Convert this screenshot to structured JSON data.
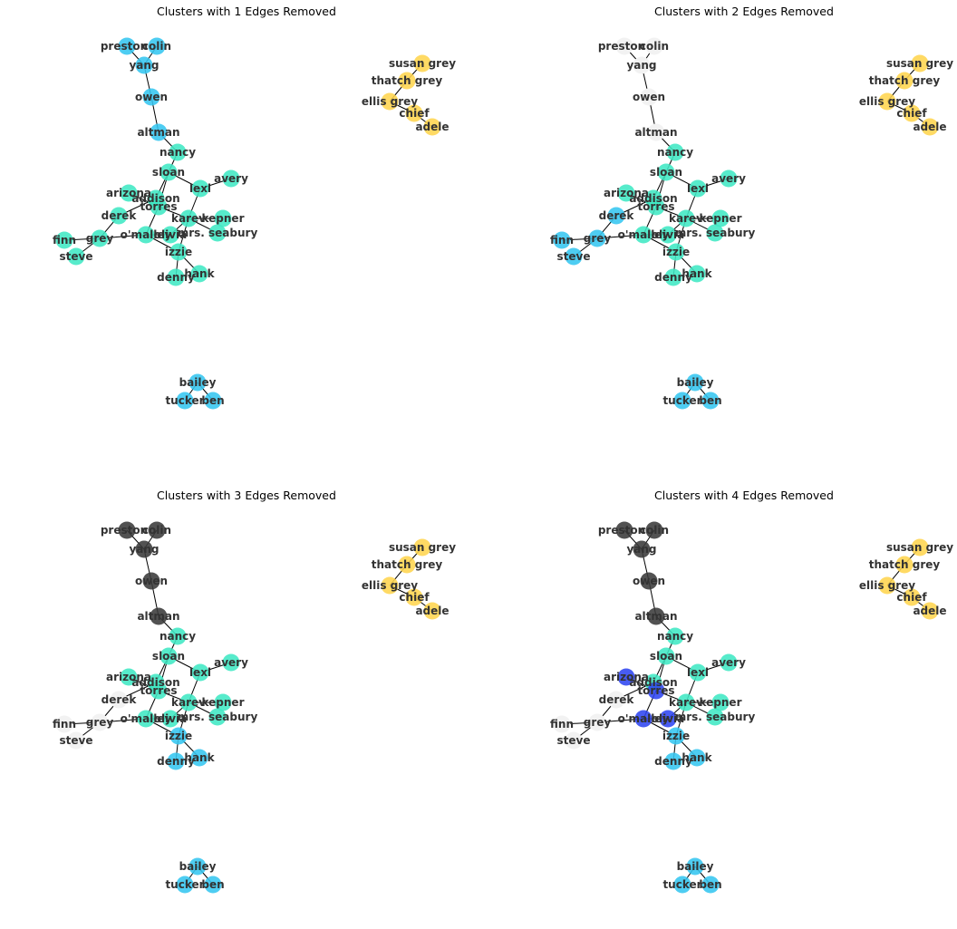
{
  "figure": {
    "panels": [
      {
        "title": "Clusters with 1 Edges Removed",
        "removed_edges": 1
      },
      {
        "title": "Clusters with 2 Edges Removed",
        "removed_edges": 2
      },
      {
        "title": "Clusters with 3 Edges Removed",
        "removed_edges": 3
      },
      {
        "title": "Clusters with 4 Edges Removed",
        "removed_edges": 4
      }
    ]
  },
  "palette": {
    "yellow": "#ffd54f",
    "teal": "#40e8c4",
    "sky": "#36c6f0",
    "gray": "#3a3a3a",
    "white": "#f2f2f2",
    "blue": "#2f45f0"
  },
  "graph": {
    "nodes": [
      "preston",
      "colin",
      "yang",
      "owen",
      "altman",
      "susan grey",
      "thatch grey",
      "ellis grey",
      "chief",
      "adele",
      "nancy",
      "sloan",
      "avery",
      "lexi",
      "arizona",
      "addison",
      "torres",
      "derek",
      "karev",
      "kepner",
      "finn",
      "grey",
      "o'malley",
      "olivia",
      "mrs. seabury",
      "steve",
      "izzie",
      "hank",
      "denny",
      "bailey",
      "tucker",
      "ben"
    ],
    "edges": [
      [
        "preston",
        "yang"
      ],
      [
        "colin",
        "yang"
      ],
      [
        "yang",
        "owen"
      ],
      [
        "owen",
        "altman"
      ],
      [
        "altman",
        "nancy"
      ],
      [
        "susan grey",
        "thatch grey"
      ],
      [
        "thatch grey",
        "ellis grey"
      ],
      [
        "ellis grey",
        "chief"
      ],
      [
        "chief",
        "adele"
      ],
      [
        "nancy",
        "sloan"
      ],
      [
        "sloan",
        "lexi"
      ],
      [
        "lexi",
        "avery"
      ],
      [
        "sloan",
        "addison"
      ],
      [
        "sloan",
        "torres"
      ],
      [
        "arizona",
        "torres"
      ],
      [
        "addison",
        "torres"
      ],
      [
        "addison",
        "derek"
      ],
      [
        "derek",
        "grey"
      ],
      [
        "lexi",
        "karev"
      ],
      [
        "torres",
        "o'malley"
      ],
      [
        "torres",
        "karev"
      ],
      [
        "karev",
        "kepner"
      ],
      [
        "karev",
        "mrs. seabury"
      ],
      [
        "karev",
        "olivia"
      ],
      [
        "karev",
        "izzie"
      ],
      [
        "o'malley",
        "olivia"
      ],
      [
        "o'malley",
        "grey"
      ],
      [
        "o'malley",
        "izzie"
      ],
      [
        "grey",
        "finn"
      ],
      [
        "grey",
        "steve"
      ],
      [
        "izzie",
        "hank"
      ],
      [
        "izzie",
        "denny"
      ],
      [
        "bailey",
        "tucker"
      ],
      [
        "bailey",
        "ben"
      ]
    ],
    "node_colors": [
      {
        "preston": "sky",
        "colin": "sky",
        "yang": "sky",
        "owen": "sky",
        "altman": "sky",
        "susan grey": "yellow",
        "thatch grey": "yellow",
        "ellis grey": "yellow",
        "chief": "yellow",
        "adele": "yellow",
        "nancy": "teal",
        "sloan": "teal",
        "avery": "teal",
        "lexi": "teal",
        "arizona": "teal",
        "addison": "teal",
        "torres": "teal",
        "derek": "teal",
        "karev": "teal",
        "kepner": "teal",
        "finn": "teal",
        "grey": "teal",
        "o'malley": "teal",
        "olivia": "teal",
        "mrs. seabury": "teal",
        "steve": "teal",
        "izzie": "teal",
        "hank": "teal",
        "denny": "teal",
        "bailey": "sky",
        "tucker": "sky",
        "ben": "sky"
      },
      {
        "preston": "white",
        "colin": "white",
        "yang": "white",
        "owen": "white",
        "altman": "white",
        "susan grey": "yellow",
        "thatch grey": "yellow",
        "ellis grey": "yellow",
        "chief": "yellow",
        "adele": "yellow",
        "nancy": "teal",
        "sloan": "teal",
        "avery": "teal",
        "lexi": "teal",
        "arizona": "teal",
        "addison": "teal",
        "torres": "teal",
        "derek": "sky",
        "karev": "teal",
        "kepner": "teal",
        "finn": "sky",
        "grey": "sky",
        "o'malley": "teal",
        "olivia": "teal",
        "mrs. seabury": "teal",
        "steve": "sky",
        "izzie": "teal",
        "hank": "teal",
        "denny": "teal",
        "bailey": "sky",
        "tucker": "sky",
        "ben": "sky"
      },
      {
        "preston": "gray",
        "colin": "gray",
        "yang": "gray",
        "owen": "gray",
        "altman": "gray",
        "susan grey": "yellow",
        "thatch grey": "yellow",
        "ellis grey": "yellow",
        "chief": "yellow",
        "adele": "yellow",
        "nancy": "teal",
        "sloan": "teal",
        "avery": "teal",
        "lexi": "teal",
        "arizona": "teal",
        "addison": "teal",
        "torres": "teal",
        "derek": "white",
        "karev": "teal",
        "kepner": "teal",
        "finn": "white",
        "grey": "white",
        "o'malley": "teal",
        "olivia": "teal",
        "mrs. seabury": "teal",
        "steve": "white",
        "izzie": "sky",
        "hank": "sky",
        "denny": "sky",
        "bailey": "sky",
        "tucker": "sky",
        "ben": "sky"
      },
      {
        "preston": "gray",
        "colin": "gray",
        "yang": "gray",
        "owen": "gray",
        "altman": "gray",
        "susan grey": "yellow",
        "thatch grey": "yellow",
        "ellis grey": "yellow",
        "chief": "yellow",
        "adele": "yellow",
        "nancy": "teal",
        "sloan": "teal",
        "avery": "teal",
        "lexi": "teal",
        "arizona": "blue",
        "addison": "teal",
        "torres": "blue",
        "derek": "white",
        "karev": "teal",
        "kepner": "teal",
        "finn": "white",
        "grey": "white",
        "o'malley": "blue",
        "olivia": "blue",
        "mrs. seabury": "teal",
        "steve": "white",
        "izzie": "sky",
        "hank": "sky",
        "denny": "sky",
        "bailey": "sky",
        "tucker": "sky",
        "ben": "sky"
      }
    ]
  }
}
